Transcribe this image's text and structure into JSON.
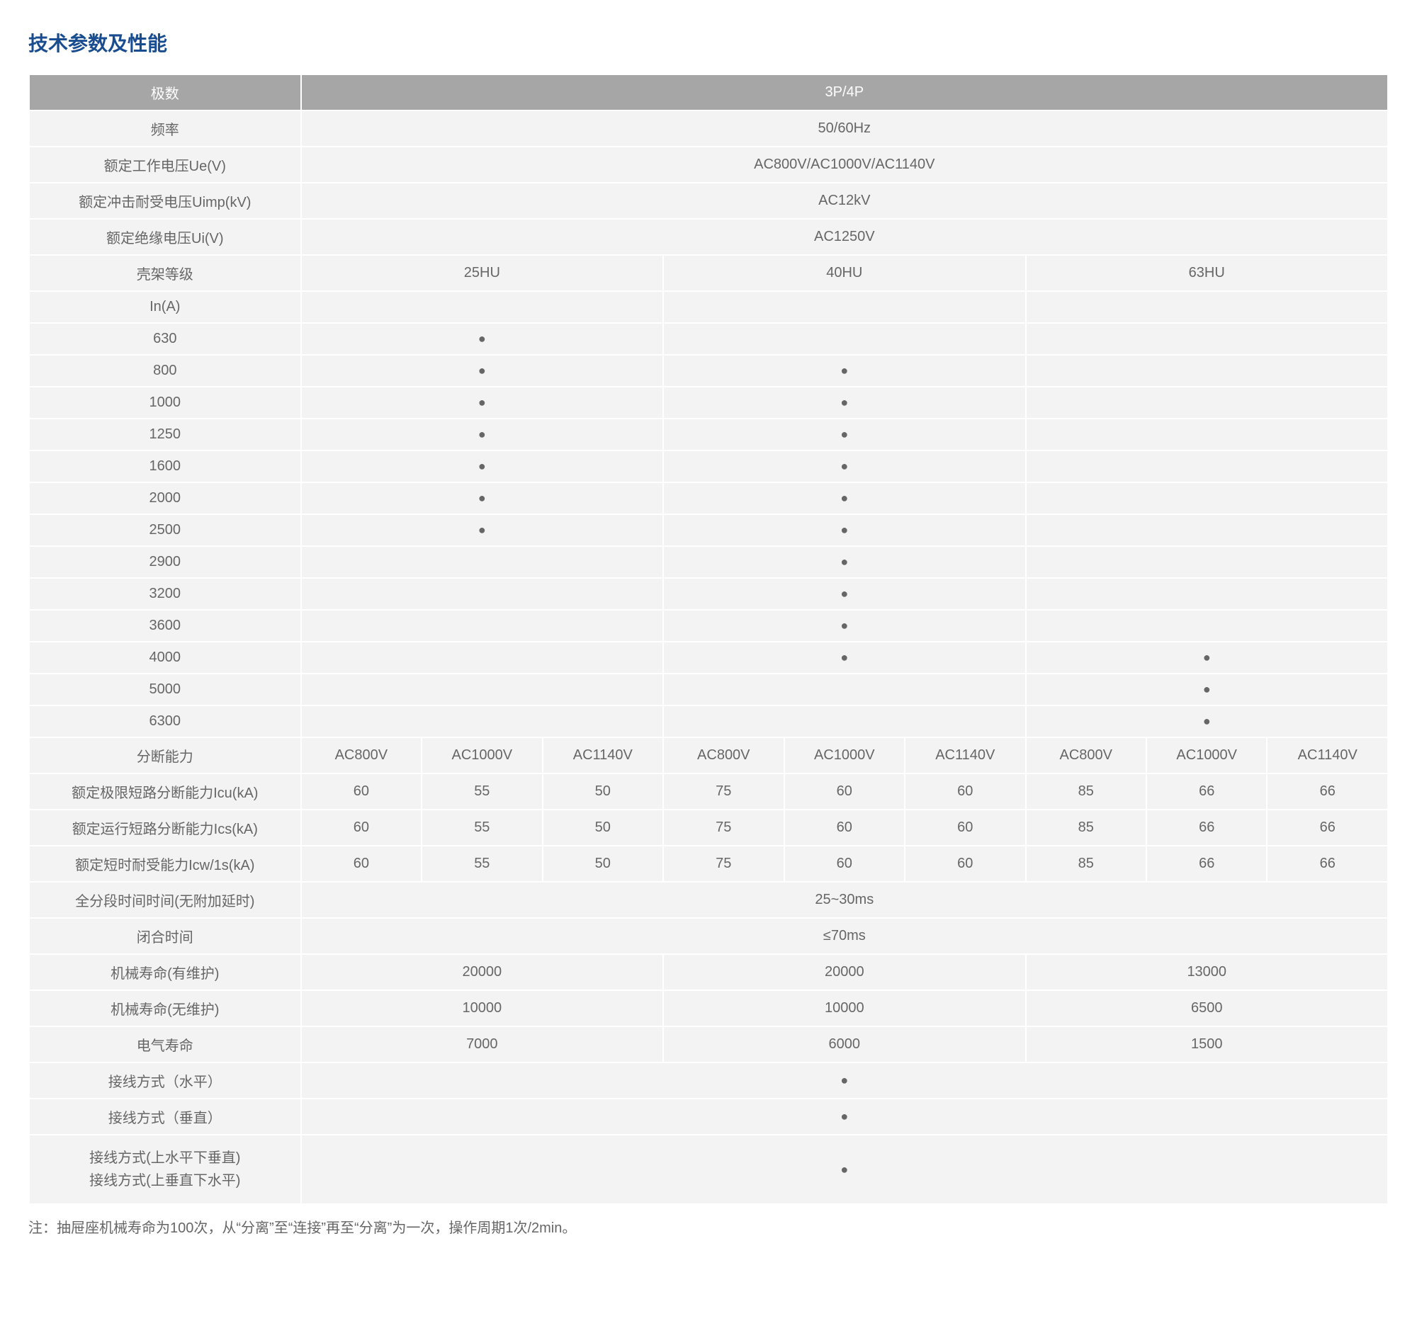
{
  "title": "技术参数及性能",
  "colors": {
    "title_color": "#1a4d8f",
    "header_bg": "#a6a6a6",
    "header_fg": "#ffffff",
    "cell_bg": "#f3f3f3",
    "cell_fg": "#666666",
    "border": "#ffffff"
  },
  "header": {
    "label": "极数",
    "value": "3P/4P"
  },
  "full_rows_top": [
    {
      "label": "频率",
      "value": "50/60Hz"
    },
    {
      "label": "额定工作电压Ue(V)",
      "value": "AC800V/AC1000V/AC1140V"
    },
    {
      "label": "额定冲击耐受电压Uimp(kV)",
      "value": "AC12kV"
    },
    {
      "label": "额定绝缘电压Ui(V)",
      "value": "AC1250V"
    }
  ],
  "frame_header": {
    "label": "壳架等级",
    "c1": "25HU",
    "c2": "40HU",
    "c3": "63HU"
  },
  "in_header": "In(A)",
  "in_rows": [
    {
      "label": "630",
      "c1": "●",
      "c2": "",
      "c3": ""
    },
    {
      "label": "800",
      "c1": "●",
      "c2": "●",
      "c3": ""
    },
    {
      "label": "1000",
      "c1": "●",
      "c2": "●",
      "c3": ""
    },
    {
      "label": "1250",
      "c1": "●",
      "c2": "●",
      "c3": ""
    },
    {
      "label": "1600",
      "c1": "●",
      "c2": "●",
      "c3": ""
    },
    {
      "label": "2000",
      "c1": "●",
      "c2": "●",
      "c3": ""
    },
    {
      "label": "2500",
      "c1": "●",
      "c2": "●",
      "c3": ""
    },
    {
      "label": "2900",
      "c1": "",
      "c2": "●",
      "c3": ""
    },
    {
      "label": "3200",
      "c1": "",
      "c2": "●",
      "c3": ""
    },
    {
      "label": "3600",
      "c1": "",
      "c2": "●",
      "c3": ""
    },
    {
      "label": "4000",
      "c1": "",
      "c2": "●",
      "c3": "●"
    },
    {
      "label": "5000",
      "c1": "",
      "c2": "",
      "c3": "●"
    },
    {
      "label": "6300",
      "c1": "",
      "c2": "",
      "c3": "●"
    }
  ],
  "break_header": {
    "label": "分断能力",
    "cols": [
      "AC800V",
      "AC1000V",
      "AC1140V",
      "AC800V",
      "AC1000V",
      "AC1140V",
      "AC800V",
      "AC1000V",
      "AC1140V"
    ]
  },
  "break_rows": [
    {
      "label": "额定极限短路分断能力Icu(kA)",
      "vals": [
        "60",
        "55",
        "50",
        "75",
        "60",
        "60",
        "85",
        "66",
        "66"
      ]
    },
    {
      "label": "额定运行短路分断能力Ics(kA)",
      "vals": [
        "60",
        "55",
        "50",
        "75",
        "60",
        "60",
        "85",
        "66",
        "66"
      ]
    },
    {
      "label": "额定短时耐受能力Icw/1s(kA)",
      "vals": [
        "60",
        "55",
        "50",
        "75",
        "60",
        "60",
        "85",
        "66",
        "66"
      ]
    }
  ],
  "time_rows": [
    {
      "label": "全分段时间时间(无附加延时)",
      "value": "25~30ms"
    },
    {
      "label": "闭合时间",
      "value": "≤70ms"
    }
  ],
  "life_rows": [
    {
      "label": "机械寿命(有维护)",
      "c1": "20000",
      "c2": "20000",
      "c3": "13000"
    },
    {
      "label": "机械寿命(无维护)",
      "c1": "10000",
      "c2": "10000",
      "c3": "6500"
    },
    {
      "label": "电气寿命",
      "c1": "7000",
      "c2": "6000",
      "c3": "1500"
    }
  ],
  "conn_rows": [
    {
      "label": "接线方式（水平）",
      "value": "●"
    },
    {
      "label": "接线方式（垂直）",
      "value": "●"
    },
    {
      "label": "接线方式(上水平下垂直)\n接线方式(上垂直下水平)",
      "value": "●",
      "tall": true
    }
  ],
  "note": "注：抽屉座机械寿命为100次，从“分离”至“连接”再至“分离”为一次，操作周期1次/2min。"
}
